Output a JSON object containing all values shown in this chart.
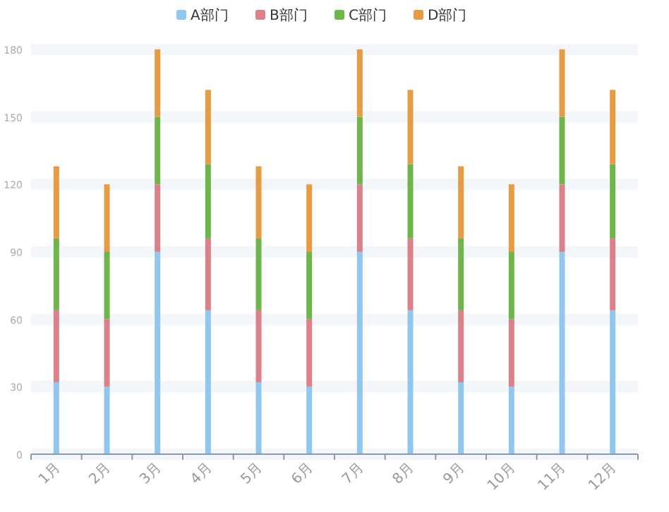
{
  "chart_data": {
    "type": "bar",
    "stacked": true,
    "categories": [
      "1月",
      "2月",
      "3月",
      "4月",
      "5月",
      "6月",
      "7月",
      "8月",
      "9月",
      "10月",
      "11月",
      "12月"
    ],
    "series": [
      {
        "name": "A部门",
        "color": "#91c7ef",
        "values": [
          32,
          30,
          90,
          64,
          32,
          30,
          90,
          64,
          32,
          30,
          90,
          64
        ]
      },
      {
        "name": "B部门",
        "color": "#dc8089",
        "values": [
          32,
          30,
          30,
          32,
          32,
          30,
          30,
          32,
          32,
          30,
          30,
          32
        ]
      },
      {
        "name": "C部门",
        "color": "#6fb54a",
        "values": [
          32,
          30,
          30,
          33,
          32,
          30,
          30,
          33,
          32,
          30,
          30,
          33
        ]
      },
      {
        "name": "D部门",
        "color": "#e79c43",
        "values": [
          32,
          30,
          30,
          33,
          32,
          30,
          30,
          33,
          32,
          30,
          30,
          33
        ]
      }
    ],
    "ylim": [
      0,
      180
    ],
    "yticks": [
      0,
      30,
      60,
      90,
      120,
      150,
      180
    ],
    "grid": "y",
    "legend": "top"
  }
}
